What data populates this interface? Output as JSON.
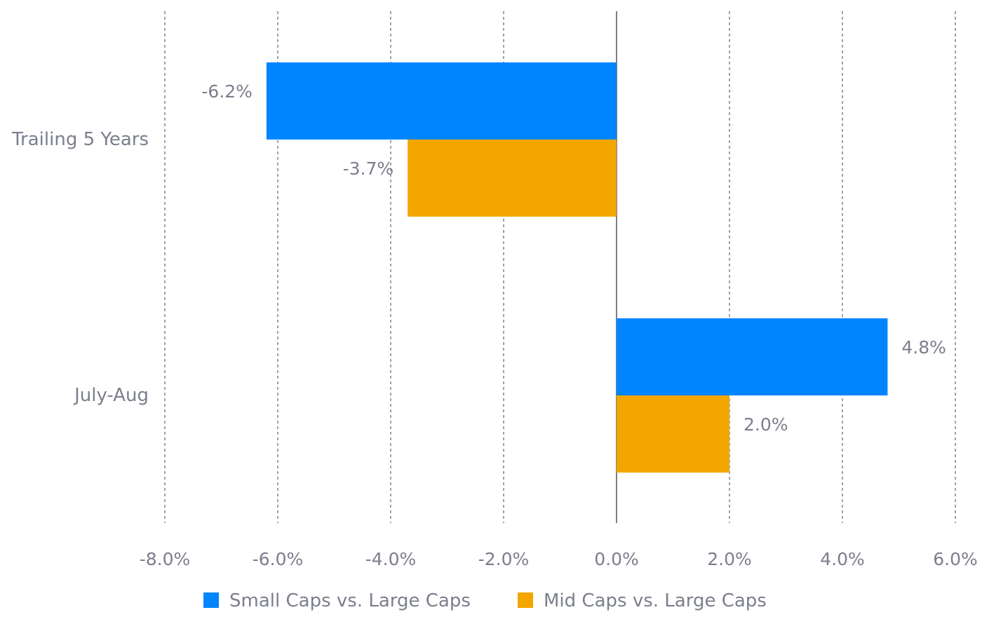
{
  "chart_data": {
    "type": "bar",
    "orientation": "horizontal",
    "categories": [
      "Trailing 5 Years",
      "July-Aug"
    ],
    "series": [
      {
        "name": "Small Caps vs. Large Caps",
        "color": "#0085ff",
        "values": [
          -6.2,
          4.8
        ],
        "labels": [
          "-6.2%",
          "4.8%"
        ]
      },
      {
        "name": "Mid Caps vs. Large Caps",
        "color": "#f3a600",
        "values": [
          -3.7,
          2.0
        ],
        "labels": [
          "-3.7%",
          "2.0%"
        ]
      }
    ],
    "xlim": [
      -8,
      6
    ],
    "xticks": [
      -8,
      -6,
      -4,
      -2,
      0,
      2,
      4,
      6
    ],
    "xtick_labels": [
      "-8.0%",
      "-6.0%",
      "-4.0%",
      "-2.0%",
      "0.0%",
      "2.0%",
      "4.0%",
      "6.0%"
    ],
    "grid": "vertical-dashed",
    "legend_position": "bottom"
  }
}
